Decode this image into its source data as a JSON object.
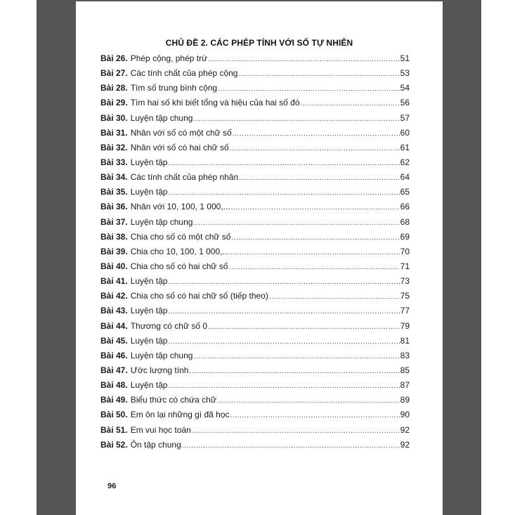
{
  "title": "CHỦ ĐỀ 2. CÁC PHÉP TÍNH VỚI SỐ TỰ NHIÊN",
  "page_number": "96",
  "entries": [
    {
      "lesson": "Bài 26.",
      "title": "Phép cộng, phép trừ",
      "page": "51"
    },
    {
      "lesson": "Bài 27.",
      "title": "Các tính chất của phép cộng",
      "page": "53"
    },
    {
      "lesson": "Bài 28.",
      "title": "Tìm số trung bình cộng",
      "page": "54"
    },
    {
      "lesson": "Bài 29.",
      "title": "Tìm hai số khi biết tổng và hiệu của hai số đó",
      "page": "56"
    },
    {
      "lesson": "Bài 30.",
      "title": "Luyện tập chung",
      "page": "57"
    },
    {
      "lesson": "Bài 31.",
      "title": "Nhân với số có một chữ số",
      "page": "60"
    },
    {
      "lesson": "Bài 32.",
      "title": "Nhân với số có hai chữ số",
      "page": "61"
    },
    {
      "lesson": "Bài 33.",
      "title": "Luyện tập",
      "page": "62"
    },
    {
      "lesson": "Bài 34.",
      "title": "Các tính chất của phép nhân",
      "page": "64"
    },
    {
      "lesson": "Bài 35.",
      "title": "Luyện tập",
      "page": "65"
    },
    {
      "lesson": "Bài 36.",
      "title": "Nhân với 10, 100, 1 000,...",
      "page": "66"
    },
    {
      "lesson": "Bài 37.",
      "title": "Luyện tập chung",
      "page": "68"
    },
    {
      "lesson": "Bài 38.",
      "title": "Chia cho số có một chữ số",
      "page": "69"
    },
    {
      "lesson": "Bài 39.",
      "title": "Chia cho 10, 100, 1 000,...",
      "page": "70"
    },
    {
      "lesson": "Bài 40.",
      "title": "Chia cho số có hai chữ số",
      "page": "71"
    },
    {
      "lesson": "Bài 41.",
      "title": "Luyện tập",
      "page": "73"
    },
    {
      "lesson": "Bài 42.",
      "title": "Chia cho số có hai chữ số (tiếp theo)",
      "page": "75"
    },
    {
      "lesson": "Bài 43.",
      "title": "Luyện tập",
      "page": "77"
    },
    {
      "lesson": "Bài 44.",
      "title": "Thương có chữ số 0",
      "page": "79"
    },
    {
      "lesson": "Bài 45.",
      "title": "Luyện tập",
      "page": "81"
    },
    {
      "lesson": "Bài 46.",
      "title": "Luyện tập chung",
      "page": "83"
    },
    {
      "lesson": "Bài 47.",
      "title": "Ước lượng tính",
      "page": "85"
    },
    {
      "lesson": "Bài 48.",
      "title": "Luyện tập",
      "page": "87"
    },
    {
      "lesson": "Bài 49.",
      "title": "Biểu thức có chứa chữ",
      "page": "89"
    },
    {
      "lesson": "Bài 50.",
      "title": "Em ôn lại những gì đã học",
      "page": "90"
    },
    {
      "lesson": "Bài 51.",
      "title": "Em vui học toán",
      "page": "92"
    },
    {
      "lesson": "Bài 52.",
      "title": "Ôn tập chung",
      "page": "92"
    }
  ]
}
